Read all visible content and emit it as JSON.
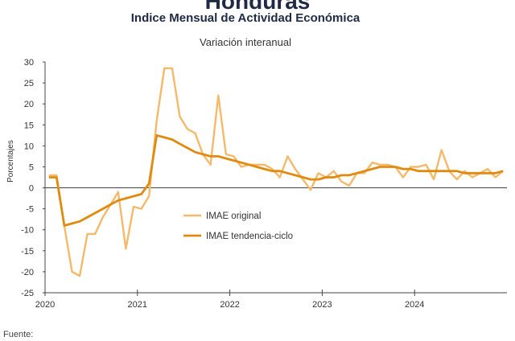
{
  "page": {
    "title": "Honduras",
    "subtitle": "Indice Mensual de  Actividad Económica",
    "subtitle2": "Variación interanual",
    "footer": "Fuente:"
  },
  "chart_data": {
    "type": "line",
    "ylabel": "Porcentajes",
    "ylim": [
      -25,
      30
    ],
    "yticks": [
      30,
      25,
      20,
      15,
      10,
      5,
      0,
      -5,
      -10,
      -15,
      -20,
      -25
    ],
    "xlim": [
      2020,
      2025
    ],
    "xticks": [
      "2020",
      "2021",
      "2022",
      "2023",
      "2024"
    ],
    "colors": {
      "original": "#f5b96b",
      "trend": "#e08a10"
    },
    "legend_placement": "center-left",
    "series": [
      {
        "name": "IMAE original",
        "values": [
          3.0,
          3.0,
          -9.0,
          -20.0,
          -21.0,
          -11.0,
          -11.0,
          -7.0,
          -4.0,
          -1.0,
          -14.5,
          -4.5,
          -5.0,
          -2.0,
          16.0,
          28.5,
          28.5,
          17.0,
          14.0,
          13.0,
          8.0,
          5.5,
          22.0,
          8.0,
          7.5,
          5.0,
          5.5,
          5.5,
          5.5,
          4.5,
          2.5,
          7.5,
          4.5,
          2.0,
          -0.5,
          3.5,
          2.5,
          4.0,
          1.5,
          0.5,
          3.5,
          3.5,
          6.0,
          5.5,
          5.5,
          5.0,
          2.5,
          5.0,
          5.0,
          5.5,
          2.0,
          9.0,
          4.0,
          2.0,
          4.0,
          2.5,
          3.5,
          4.5,
          2.5,
          4.0
        ]
      },
      {
        "name": "IMAE tendencia-ciclo",
        "values": [
          2.5,
          2.5,
          -9.0,
          -8.5,
          -8.0,
          -7.0,
          -6.0,
          -5.0,
          -4.0,
          -3.0,
          -2.5,
          -2.0,
          -1.5,
          1.0,
          12.5,
          12.0,
          11.5,
          10.5,
          9.5,
          8.5,
          8.0,
          7.5,
          7.5,
          7.0,
          6.5,
          6.0,
          5.5,
          5.0,
          4.5,
          4.0,
          4.0,
          3.5,
          3.0,
          2.5,
          2.0,
          2.0,
          2.5,
          2.5,
          3.0,
          3.0,
          3.5,
          4.0,
          4.5,
          5.0,
          5.0,
          5.0,
          4.5,
          4.5,
          4.0,
          4.0,
          4.0,
          4.0,
          4.0,
          4.0,
          3.5,
          3.5,
          3.5,
          3.5,
          3.5,
          4.0
        ]
      }
    ]
  }
}
